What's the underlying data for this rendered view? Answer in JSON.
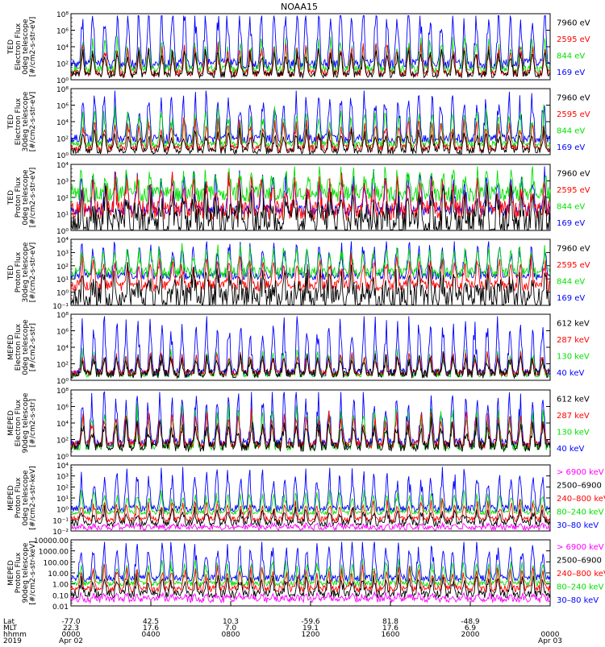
{
  "title": "NOAA15",
  "chart_data": {
    "type": "line",
    "title": "NOAA15",
    "panels": [
      {
        "id": "ted-e-0",
        "ylabel": [
          "TED",
          "Electron Flux",
          "0deg telescope",
          "[#/cm2-s-str-eV]"
        ],
        "yticks": [
          "10⁸",
          "10⁶",
          "10⁴",
          "10²",
          "10⁰"
        ],
        "scale": "log",
        "series": [
          {
            "name": "7960 eV",
            "color": "#000000",
            "base": 0.08,
            "spread": 0.05,
            "spike": 0.35
          },
          {
            "name": "2595 eV",
            "color": "#ff0000",
            "base": 0.1,
            "spread": 0.05,
            "spike": 0.4
          },
          {
            "name": "844 eV",
            "color": "#00e000",
            "base": 0.16,
            "spread": 0.06,
            "spike": 0.45
          },
          {
            "name": "169 eV",
            "color": "#0000ff",
            "base": 0.24,
            "spread": 0.08,
            "spike": 0.9
          }
        ]
      },
      {
        "id": "ted-e-30",
        "ylabel": [
          "TED",
          "Electron Flux",
          "30deg telescope",
          "[#/cm2-s-str-eV]"
        ],
        "yticks": [
          "10⁸",
          "10⁶",
          "10⁴",
          "10²",
          "10⁰"
        ],
        "scale": "log",
        "series": [
          {
            "name": "7960 eV",
            "color": "#000000",
            "base": 0.06,
            "spread": 0.05,
            "spike": 0.3
          },
          {
            "name": "2595 eV",
            "color": "#ff0000",
            "base": 0.1,
            "spread": 0.05,
            "spike": 0.4
          },
          {
            "name": "844 eV",
            "color": "#00e000",
            "base": 0.16,
            "spread": 0.05,
            "spike": 0.5
          },
          {
            "name": "169 eV",
            "color": "#0000ff",
            "base": 0.24,
            "spread": 0.07,
            "spike": 0.7
          }
        ]
      },
      {
        "id": "ted-p-0",
        "ylabel": [
          "TED",
          "Proton Flux",
          "0deg telescope",
          "[#/cm2-s-str-eV]"
        ],
        "yticks": [
          "10⁴",
          "10³",
          "10²",
          "10¹",
          "10⁰"
        ],
        "scale": "log",
        "series": [
          {
            "name": "7960 eV",
            "color": "#000000",
            "base": 0.1,
            "spread": 0.25,
            "spike": 0.4
          },
          {
            "name": "2595 eV",
            "color": "#ff0000",
            "base": 0.3,
            "spread": 0.15,
            "spike": 0.45
          },
          {
            "name": "844 eV",
            "color": "#00e000",
            "base": 0.55,
            "spread": 0.12,
            "spike": 0.35
          },
          {
            "name": "169 eV",
            "color": "#0000ff",
            "base": 0.3,
            "spread": 0.08,
            "spike": 0.55
          }
        ]
      },
      {
        "id": "ted-p-30",
        "ylabel": [
          "TED",
          "Proton Flux",
          "30deg telescope",
          "[#/cm2-s-str-eV]"
        ],
        "yticks": [
          "10⁴",
          "10³",
          "10²",
          "10¹",
          "10⁰",
          "10⁻¹"
        ],
        "scale": "log",
        "series": [
          {
            "name": "7960 eV",
            "color": "#000000",
            "base": 0.1,
            "spread": 0.22,
            "spike": 0.35
          },
          {
            "name": "2595 eV",
            "color": "#ff0000",
            "base": 0.3,
            "spread": 0.08,
            "spike": 0.4
          },
          {
            "name": "844 eV",
            "color": "#00e000",
            "base": 0.5,
            "spread": 0.08,
            "spike": 0.35
          },
          {
            "name": "169 eV",
            "color": "#0000ff",
            "base": 0.45,
            "spread": 0.06,
            "spike": 0.5
          }
        ]
      },
      {
        "id": "meped-e-0",
        "ylabel": [
          "MEPED",
          "Electron Flux",
          "0deg telescope",
          "[#/cm2-s-str]"
        ],
        "yticks": [
          "10⁸",
          "10⁶",
          "10⁴",
          "10²",
          "10⁰"
        ],
        "scale": "log",
        "series": [
          {
            "name": "612 keV",
            "color": "#000000",
            "base": 0.1,
            "spread": 0.07,
            "spike": 0.25
          },
          {
            "name": "287 keV",
            "color": "#ff0000",
            "base": 0.11,
            "spread": 0.04,
            "spike": 0.3
          },
          {
            "name": "130 keV",
            "color": "#00e000",
            "base": 0.08,
            "spread": 0.03,
            "spike": 0.35
          },
          {
            "name": "40 keV",
            "color": "#0000ff",
            "base": 0.12,
            "spread": 0.06,
            "spike": 0.8
          }
        ]
      },
      {
        "id": "meped-e-90",
        "ylabel": [
          "MEPED",
          "Electron Flux",
          "90deg telescope",
          "[#/cm2-s-str]"
        ],
        "yticks": [
          "10⁸",
          "10⁶",
          "10⁴",
          "10²",
          "10⁰"
        ],
        "scale": "log",
        "series": [
          {
            "name": "612 keV",
            "color": "#000000",
            "base": 0.15,
            "spread": 0.08,
            "spike": 0.35
          },
          {
            "name": "287 keV",
            "color": "#ff0000",
            "base": 0.18,
            "spread": 0.06,
            "spike": 0.45
          },
          {
            "name": "130 keV",
            "color": "#00e000",
            "base": 0.14,
            "spread": 0.05,
            "spike": 0.55
          },
          {
            "name": "40 keV",
            "color": "#0000ff",
            "base": 0.2,
            "spread": 0.07,
            "spike": 0.75
          }
        ]
      },
      {
        "id": "meped-p-0",
        "ylabel": [
          "MEPED",
          "Proton Flux",
          "0deg telescope",
          "[#/cm2-s-str-keV]"
        ],
        "yticks": [
          "10⁴",
          "10³",
          "10²",
          "10¹",
          "10⁰",
          "10⁻¹",
          "10⁻²"
        ],
        "scale": "log",
        "series": [
          {
            "name": "> 6900 keV",
            "color": "#ff00ff",
            "base": 0.05,
            "spread": 0.04,
            "spike": 0.05
          },
          {
            "name": "2500–6900",
            "color": "#000000",
            "base": 0.12,
            "spread": 0.05,
            "spike": 0.2
          },
          {
            "name": "240–800 keV",
            "color": "#ff0000",
            "base": 0.18,
            "spread": 0.04,
            "spike": 0.25
          },
          {
            "name": "80–240 keV",
            "color": "#00e000",
            "base": 0.28,
            "spread": 0.03,
            "spike": 0.3
          },
          {
            "name": "30–80 keV",
            "color": "#0000ff",
            "base": 0.34,
            "spread": 0.05,
            "spike": 0.55
          }
        ]
      },
      {
        "id": "meped-p-90",
        "ylabel": [
          "MEPED",
          "Proton Flux",
          "90deg telescope",
          "[#/cm2-s-str-keV]"
        ],
        "yticks": [
          "10000.00",
          "1000.00",
          "100.00",
          "10.00",
          "1.00",
          "0.10",
          "0.01"
        ],
        "scale": "log",
        "series": [
          {
            "name": "> 6900 keV",
            "color": "#ff00ff",
            "base": 0.1,
            "spread": 0.05,
            "spike": 0.08
          },
          {
            "name": "2500–6900",
            "color": "#000000",
            "base": 0.18,
            "spread": 0.06,
            "spike": 0.25
          },
          {
            "name": "240–800 keV",
            "color": "#ff0000",
            "base": 0.26,
            "spread": 0.05,
            "spike": 0.3
          },
          {
            "name": "80–240 keV",
            "color": "#00e000",
            "base": 0.34,
            "spread": 0.04,
            "spike": 0.35
          },
          {
            "name": "30–80 keV",
            "color": "#0000ff",
            "base": 0.42,
            "spread": 0.05,
            "spike": 0.55
          }
        ]
      }
    ],
    "xaxis": {
      "row_labels": [
        "Lat",
        "MLT",
        "hhmm",
        "2019"
      ],
      "ticks": [
        {
          "lat": "-77.0",
          "mlt": "22.3",
          "hhmm": "0000",
          "date": "Apr 02"
        },
        {
          "lat": "42.5",
          "mlt": "17.6",
          "hhmm": "0400",
          "date": ""
        },
        {
          "lat": "10.3",
          "mlt": "7.0",
          "hhmm": "0800",
          "date": ""
        },
        {
          "lat": "-59.6",
          "mlt": "19.1",
          "hhmm": "1200",
          "date": ""
        },
        {
          "lat": "81.8",
          "mlt": "17.6",
          "hhmm": "1600",
          "date": ""
        },
        {
          "lat": "-48.9",
          "mlt": "6.9",
          "hhmm": "2000",
          "date": ""
        },
        {
          "lat": "",
          "mlt": "",
          "hhmm": "0000",
          "date": "Apr 03"
        }
      ]
    },
    "grid": false
  }
}
